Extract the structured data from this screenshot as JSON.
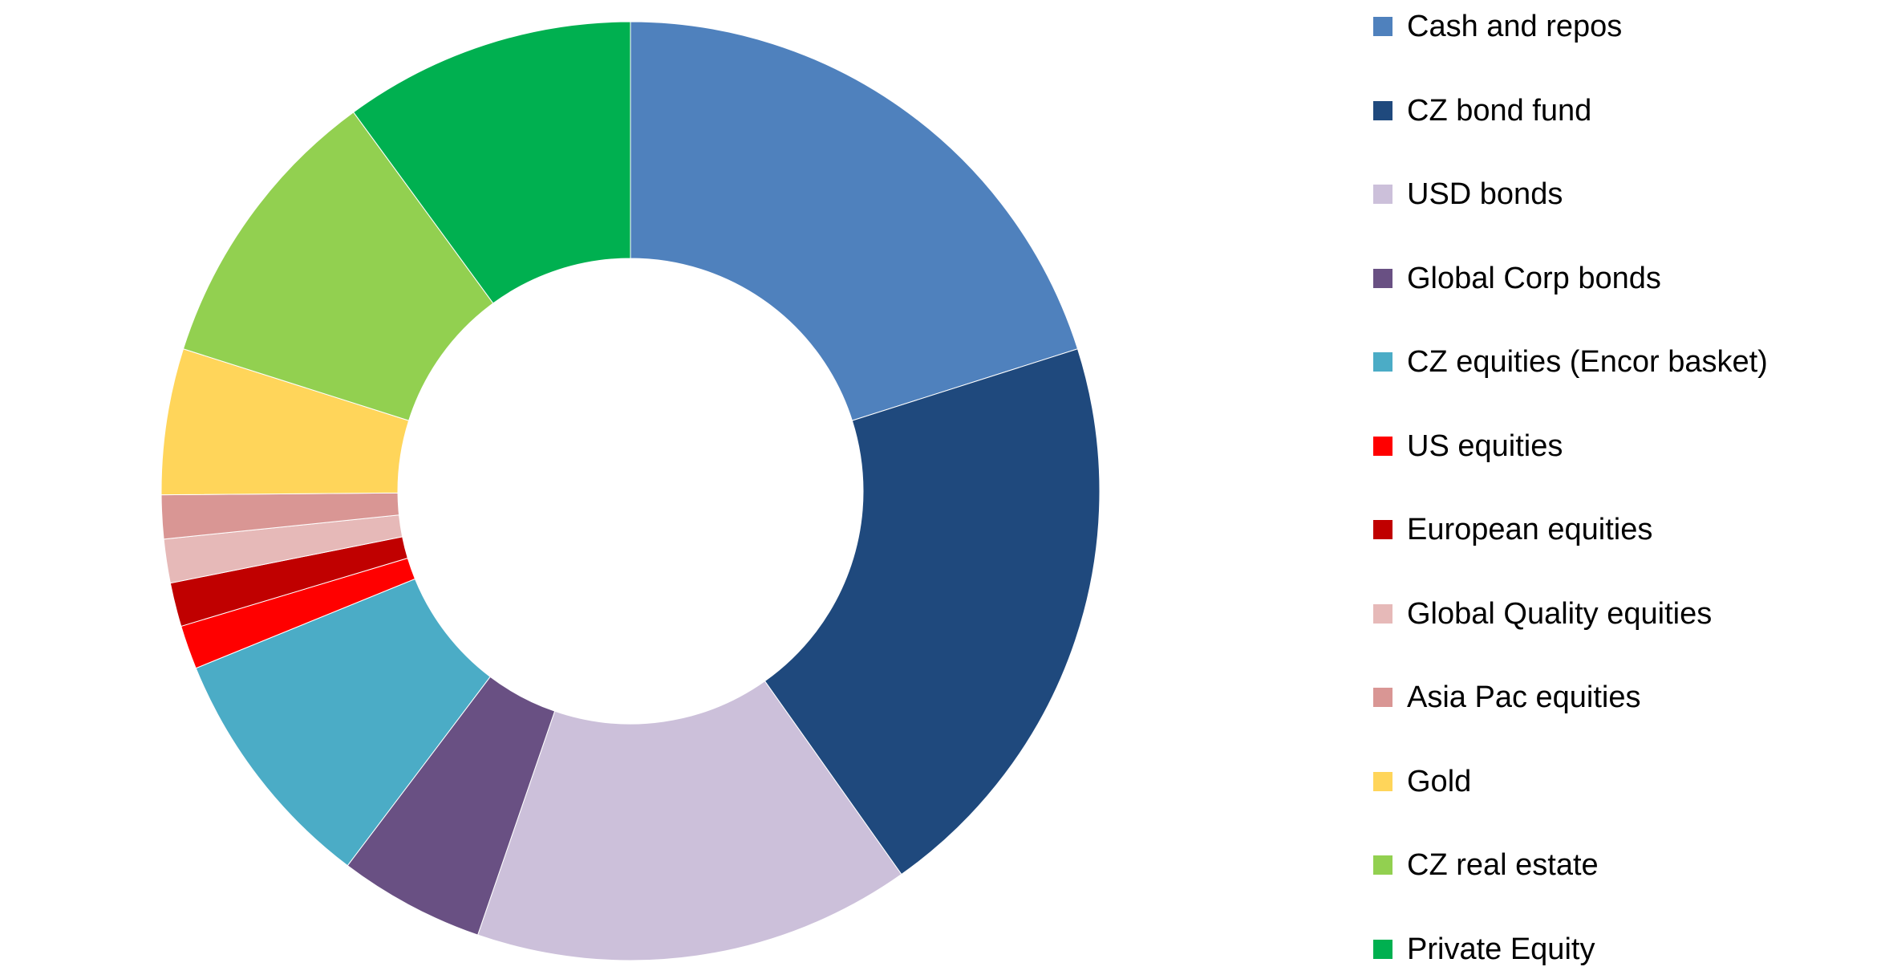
{
  "chart_data": {
    "type": "donut",
    "title": "",
    "categories": [
      "Cash and repos",
      "CZ bond fund",
      "USD bonds",
      "Global Corp bonds",
      "CZ equities (Encor basket)",
      "US equities",
      "European equities",
      "Global Quality equities",
      "Asia Pac equities",
      "Gold",
      "CZ real estate",
      "Private Equity"
    ],
    "values": [
      20,
      20,
      15,
      5,
      8.5,
      1.5,
      1.5,
      1.5,
      1.5,
      5,
      10,
      10
    ],
    "unit": "%",
    "colors": [
      "#4F81BD",
      "#1F497D",
      "#CCC0DA",
      "#695083",
      "#4BACC6",
      "#FF0000",
      "#C00000",
      "#E6B9B8",
      "#D99694",
      "#FFD55A",
      "#92D050",
      "#00B050"
    ],
    "start_angle_deg": 0,
    "direction": "clockwise",
    "legend_position": "right",
    "data_labels": false
  }
}
